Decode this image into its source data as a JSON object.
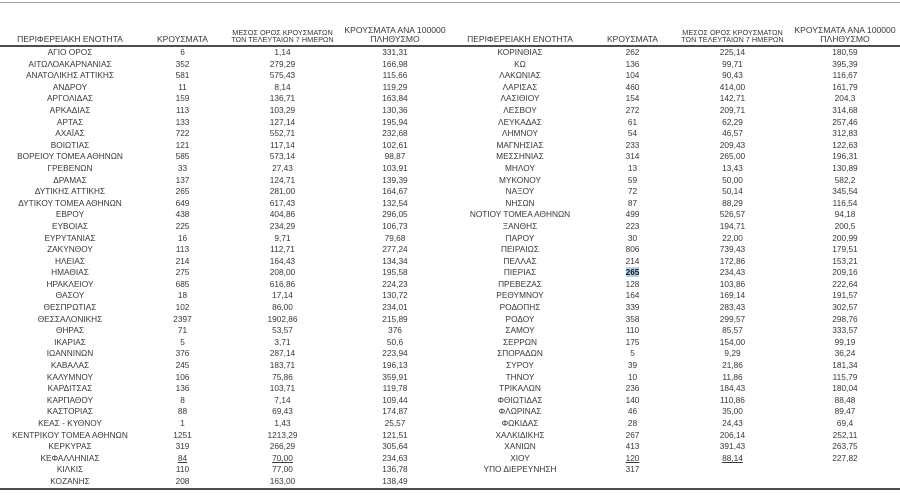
{
  "headers": {
    "region": "ΠΕΡΙΦΕΡΕΙΑΚΗ ΕΝΟΤΗΤΑ",
    "cases": "ΚΡΟΥΣΜΑΤΑ",
    "avg7": "ΜΕΣΟΣ ΟΡΟΣ ΚΡΟΥΣΜΑΤΩΝ ΤΩΝ ΤΕΛΕΥΤΑΙΩΝ 7 ΗΜΕΡΩΝ",
    "per100k": "ΚΡΟΥΣΜΑΤΑ ΑΝΑ 100000 ΠΛΗΘΥΣΜΟ"
  },
  "tables": [
    {
      "rows": [
        [
          "ΑΓΙΟ ΟΡΟΣ",
          "6",
          "1,14",
          "331,31"
        ],
        [
          "ΑΙΤΩΛΟΑΚΑΡΝΑΝΙΑΣ",
          "352",
          "279,29",
          "166,98"
        ],
        [
          "ΑΝΑΤΟΛΙΚΗΣ ΑΤΤΙΚΗΣ",
          "581",
          "575,43",
          "115,66"
        ],
        [
          "ΑΝΔΡΟΥ",
          "11",
          "8,14",
          "119,29"
        ],
        [
          "ΑΡΓΟΛΙΔΑΣ",
          "159",
          "136,71",
          "163,84"
        ],
        [
          "ΑΡΚΑΔΙΑΣ",
          "113",
          "103,29",
          "130,36"
        ],
        [
          "ΑΡΤΑΣ",
          "133",
          "127,14",
          "195,94"
        ],
        [
          "ΑΧΑΪΑΣ",
          "722",
          "552,71",
          "232,68"
        ],
        [
          "ΒΟΙΩΤΙΑΣ",
          "121",
          "117,14",
          "102,61"
        ],
        [
          "ΒΟΡΕΙΟΥ ΤΟΜΕΑ ΑΘΗΝΩΝ",
          "585",
          "573,14",
          "98,87"
        ],
        [
          "ΓΡΕΒΕΝΩΝ",
          "33",
          "27,43",
          "103,91"
        ],
        [
          "ΔΡΑΜΑΣ",
          "137",
          "124,71",
          "139,39"
        ],
        [
          "ΔΥΤΙΚΗΣ ΑΤΤΙΚΗΣ",
          "265",
          "281,00",
          "164,67"
        ],
        [
          "ΔΥΤΙΚΟΥ ΤΟΜΕΑ ΑΘΗΝΩΝ",
          "649",
          "617,43",
          "132,54"
        ],
        [
          "ΕΒΡΟΥ",
          "438",
          "404,86",
          "296,05"
        ],
        [
          "ΕΥΒΟΙΑΣ",
          "225",
          "234,29",
          "106,73"
        ],
        [
          "ΕΥΡΥΤΑΝΙΑΣ",
          "16",
          "9,71",
          "79,68"
        ],
        [
          "ΖΑΚΥΝΘΟΥ",
          "113",
          "112,71",
          "277,24"
        ],
        [
          "ΗΛΕΙΑΣ",
          "214",
          "164,43",
          "134,34"
        ],
        [
          "ΗΜΑΘΙΑΣ",
          "275",
          "208,00",
          "195,58"
        ],
        [
          "ΗΡΑΚΛΕΙΟΥ",
          "685",
          "616,86",
          "224,23"
        ],
        [
          "ΘΑΣΟΥ",
          "18",
          "17,14",
          "130,72"
        ],
        [
          "ΘΕΣΠΡΩΤΙΑΣ",
          "102",
          "86,00",
          "234,01"
        ],
        [
          "ΘΕΣΣΑΛΟΝΙΚΗΣ",
          "2397",
          "1902,86",
          "215,89"
        ],
        [
          "ΘΗΡΑΣ",
          "71",
          "53,57",
          "376"
        ],
        [
          "ΙΚΑΡΙΑΣ",
          "5",
          "3,71",
          "50,6"
        ],
        [
          "ΙΩΑΝΝΙΝΩΝ",
          "376",
          "287,14",
          "223,94"
        ],
        [
          "ΚΑΒΑΛΑΣ",
          "245",
          "183,71",
          "196,13"
        ],
        [
          "ΚΑΛΥΜΝΟΥ",
          "106",
          "75,86",
          "359,91"
        ],
        [
          "ΚΑΡΔΙΤΣΑΣ",
          "136",
          "103,71",
          "119,78"
        ],
        [
          "ΚΑΡΠΑΘΟΥ",
          "8",
          "7,14",
          "109,44"
        ],
        [
          "ΚΑΣΤΟΡΙΑΣ",
          "88",
          "69,43",
          "174,87"
        ],
        [
          "ΚΕΑΣ - ΚΥΘΝΟΥ",
          "1",
          "1,43",
          "25,57"
        ],
        [
          "ΚΕΝΤΡΙΚΟΥ ΤΟΜΕΑ ΑΘΗΝΩΝ",
          "1251",
          "1213,29",
          "121,51"
        ],
        [
          "ΚΕΡΚΥΡΑΣ",
          "319",
          "266,29",
          "305,64"
        ],
        [
          "ΚΕΦΑΛΛΗΝΙΑΣ",
          "84",
          "70,00",
          "234,63"
        ],
        [
          "ΚΙΛΚΙΣ",
          "110",
          "77,00",
          "136,78"
        ],
        [
          "ΚΟΖΑΝΗΣ",
          "208",
          "163,00",
          "138,49"
        ]
      ]
    },
    {
      "rows": [
        [
          "ΚΟΡΙΝΘΙΑΣ",
          "262",
          "225,14",
          "180,59"
        ],
        [
          "ΚΩ",
          "136",
          "99,71",
          "395,39"
        ],
        [
          "ΛΑΚΩΝΙΑΣ",
          "104",
          "90,43",
          "116,67"
        ],
        [
          "ΛΑΡΙΣΑΣ",
          "460",
          "414,00",
          "161,79"
        ],
        [
          "ΛΑΣΙΘΙΟΥ",
          "154",
          "142,71",
          "204,3"
        ],
        [
          "ΛΕΣΒΟΥ",
          "272",
          "209,71",
          "314,68"
        ],
        [
          "ΛΕΥΚΑΔΑΣ",
          "61",
          "62,29",
          "257,46"
        ],
        [
          "ΛΗΜΝΟΥ",
          "54",
          "46,57",
          "312,83"
        ],
        [
          "ΜΑΓΝΗΣΙΑΣ",
          "233",
          "209,43",
          "122,63"
        ],
        [
          "ΜΕΣΣΗΝΙΑΣ",
          "314",
          "265,00",
          "196,31"
        ],
        [
          "ΜΗΛΟΥ",
          "13",
          "13,43",
          "130,89"
        ],
        [
          "ΜΥΚΟΝΟΥ",
          "59",
          "50,00",
          "582,2"
        ],
        [
          "ΝΑΞΟΥ",
          "72",
          "50,14",
          "345,54"
        ],
        [
          "ΝΗΣΩΝ",
          "87",
          "88,29",
          "116,54"
        ],
        [
          "ΝΟΤΙΟΥ ΤΟΜΕΑ ΑΘΗΝΩΝ",
          "499",
          "526,57",
          "94,18"
        ],
        [
          "ΞΑΝΘΗΣ",
          "223",
          "194,71",
          "200,5"
        ],
        [
          "ΠΑΡΟΥ",
          "30",
          "22,00",
          "200,99"
        ],
        [
          "ΠΕΙΡΑΙΩΣ",
          "806",
          "739,43",
          "179,51"
        ],
        [
          "ΠΕΛΛΑΣ",
          "214",
          "172,86",
          "153,21"
        ],
        [
          "ΠΙΕΡΙΑΣ",
          "265",
          "234,43",
          "209,16"
        ],
        [
          "ΠΡΕΒΕΖΑΣ",
          "128",
          "103,86",
          "222,64"
        ],
        [
          "ΡΕΘΥΜΝΟΥ",
          "164",
          "169,14",
          "191,57"
        ],
        [
          "ΡΟΔΟΠΗΣ",
          "339",
          "283,43",
          "302,57"
        ],
        [
          "ΡΟΔΟΥ",
          "358",
          "299,57",
          "298,76"
        ],
        [
          "ΣΑΜΟΥ",
          "110",
          "85,57",
          "333,57"
        ],
        [
          "ΣΕΡΡΩΝ",
          "175",
          "154,00",
          "99,19"
        ],
        [
          "ΣΠΟΡΑΔΩΝ",
          "5",
          "9,29",
          "36,24"
        ],
        [
          "ΣΥΡΟΥ",
          "39",
          "21,86",
          "181,34"
        ],
        [
          "ΤΗΝΟΥ",
          "10",
          "11,86",
          "115,79"
        ],
        [
          "ΤΡΙΚΑΛΩΝ",
          "236",
          "184,43",
          "180,04"
        ],
        [
          "ΦΘΙΩΤΙΔΑΣ",
          "140",
          "110,86",
          "88,48"
        ],
        [
          "ΦΛΩΡΙΝΑΣ",
          "46",
          "35,00",
          "89,47"
        ],
        [
          "ΦΩΚΙΔΑΣ",
          "28",
          "24,43",
          "69,4"
        ],
        [
          "ΧΑΛΚΙΔΙΚΗΣ",
          "267",
          "206,14",
          "252,11"
        ],
        [
          "ΧΑΝΙΩΝ",
          "413",
          "391,43",
          "263,75"
        ],
        [
          "ΧΙΟΥ",
          "120",
          "88,14",
          "227,82"
        ],
        [
          "ΥΠΟ ΔΙΕΡΕΥΝΗΣΗ",
          "317",
          "",
          ""
        ]
      ]
    }
  ],
  "cell_styles": [
    {
      "table": 0,
      "row": 35,
      "cols": [
        1,
        2
      ],
      "class": "underlined"
    },
    {
      "table": 1,
      "row": 19,
      "cols": [
        1
      ],
      "class": "selected"
    },
    {
      "table": 1,
      "row": 35,
      "cols": [
        1,
        2
      ],
      "class": "underlined"
    }
  ],
  "colors": {
    "text": "#383838",
    "rule_dark": "#4d4d4d",
    "rule_light": "#a6a6a6",
    "selection": "#b8cfe8"
  }
}
